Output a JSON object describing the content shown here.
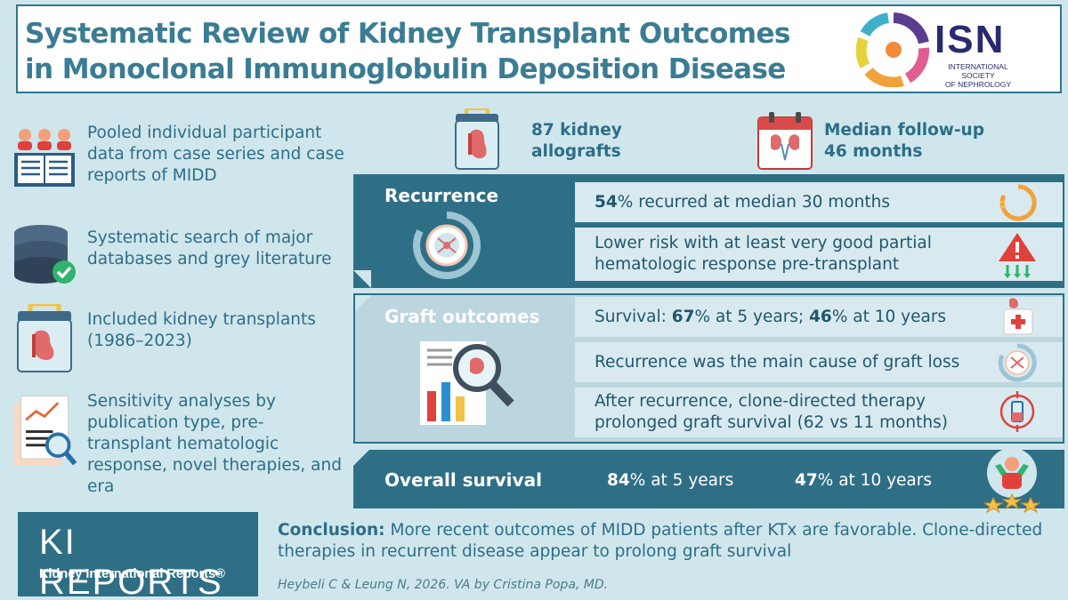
{
  "title": {
    "line1": "Systematic Review of Kidney Transplant Outcomes",
    "line2": "in Monoclonal Immunoglobulin Deposition Disease"
  },
  "isn": {
    "acronym": "ISN",
    "name_line1": "INTERNATIONAL SOCIETY",
    "name_line2": "OF NEPHROLOGY"
  },
  "methods": [
    {
      "icon": "people-book-icon",
      "text": "Pooled individual participant data from case series and case reports of MIDD"
    },
    {
      "icon": "database-check-icon",
      "text": "Systematic search of major databases and grey literature"
    },
    {
      "icon": "kidney-case-icon",
      "text": "Included kidney transplants (1986–2023)"
    },
    {
      "icon": "analysis-report-icon",
      "text": "Sensitivity analyses by publication type, pre-transplant hematologic response, novel therapies, and era"
    }
  ],
  "stats": {
    "allografts": {
      "line1": "87 kidney",
      "line2": "allografts"
    },
    "followup": {
      "line1": "Median follow-up",
      "line2": "46 months"
    }
  },
  "recurrence": {
    "title": "Recurrence",
    "row1": {
      "value": "54",
      "rest": "% recurred at median 30 months"
    },
    "row2": {
      "text": "Lower risk with at least very good partial hematologic response pre-transplant"
    }
  },
  "graft": {
    "title": "Graft outcomes",
    "row1": {
      "prefix": "Survival: ",
      "v1": "67",
      "mid": "% at 5 years; ",
      "v2": "46",
      "suffix": "% at 10 years"
    },
    "row2": {
      "text": "Recurrence was the main cause of graft loss"
    },
    "row3": {
      "text": "After recurrence, clone-directed therapy prolonged graft survival (62 vs 11 months)"
    }
  },
  "overall": {
    "title": "Overall survival",
    "v1": "84",
    "s1": "% at 5 years",
    "v2": "47",
    "s2": "% at 10 years"
  },
  "ki": {
    "main": "KI REPORTS",
    "sub": "Kidney International Reports®"
  },
  "conclusion": {
    "label": "Conclusion:",
    "text": " More recent outcomes of MIDD patients after KTx are favorable. Clone-directed therapies in recurrent disease appear to prolong graft survival"
  },
  "citation": "Heybeli C & Leung N, 2026. VA by Cristina Popa, MD.",
  "colors": {
    "primary": "#2f6f86",
    "title": "#3a7c93",
    "background": "#cfe6ec"
  }
}
